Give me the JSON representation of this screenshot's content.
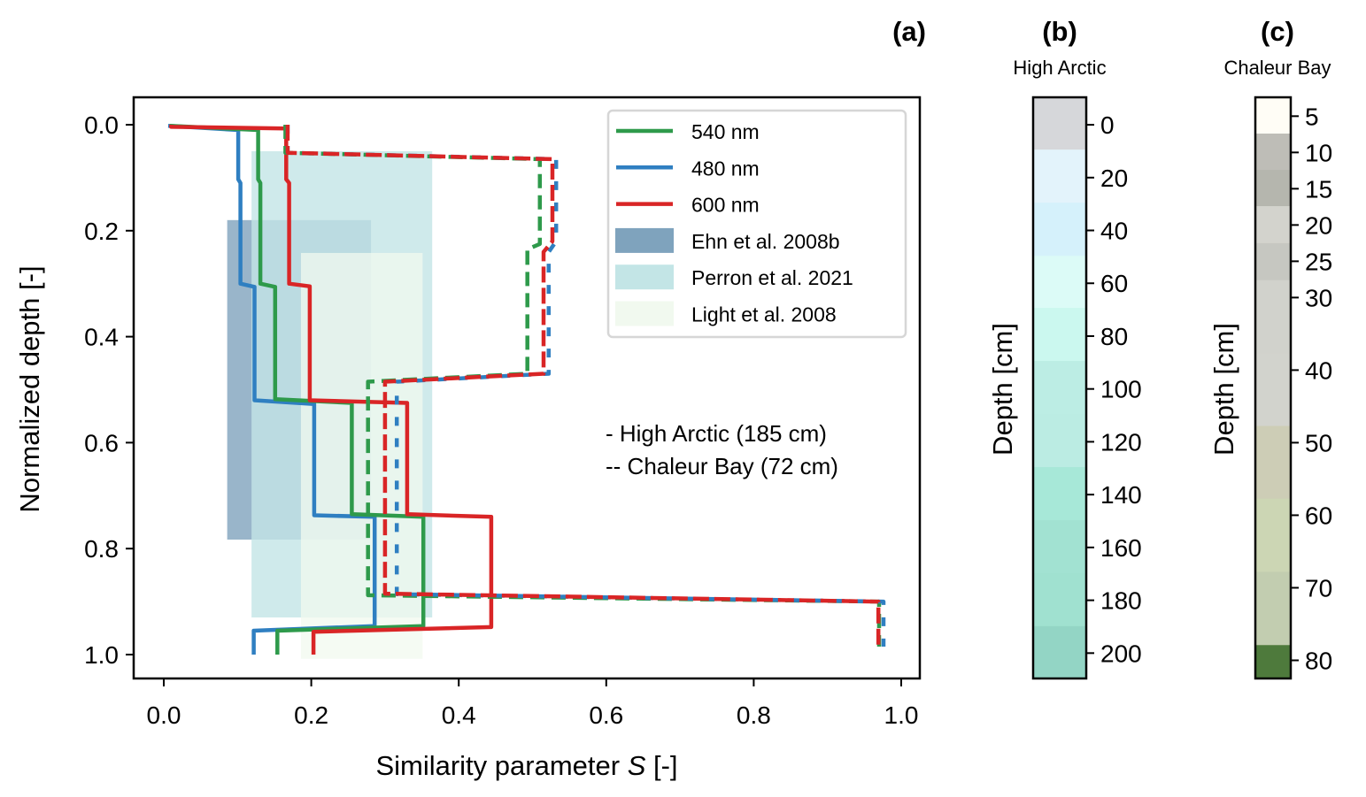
{
  "chart_data": {
    "type": "line",
    "panel_label": "(a)",
    "xlabel_prefix": "Similarity parameter ",
    "xlabel_var": "S",
    "xlabel_suffix": " [-]",
    "ylabel": "Normalized depth [-]",
    "xlim": [
      -0.04,
      1.026
    ],
    "ylim": [
      1.05,
      -0.05
    ],
    "y_inverted": true,
    "xticks": [
      0.0,
      0.2,
      0.4,
      0.6,
      0.8,
      1.0
    ],
    "xtick_labels": [
      "0.0",
      "0.2",
      "0.4",
      "0.6",
      "0.8",
      "1.0"
    ],
    "yticks": [
      0.0,
      0.2,
      0.4,
      0.6,
      0.8,
      1.0
    ],
    "ytick_labels": [
      "0.0",
      "0.2",
      "0.4",
      "0.6",
      "0.8",
      "1.0"
    ],
    "grid": false,
    "legend_placement": "top-right",
    "annotations": [
      "- High Arctic (185 cm)",
      "-- Chaleur Bay (72 cm)"
    ],
    "series": [
      {
        "name": "480 nm",
        "site": "High Arctic",
        "style": "solid",
        "color": "#2f7fc1",
        "points": [
          [
            0.006,
            0.002
          ],
          [
            0.101,
            0.01
          ],
          [
            0.101,
            0.103
          ],
          [
            0.104,
            0.11
          ],
          [
            0.104,
            0.3
          ],
          [
            0.123,
            0.306
          ],
          [
            0.123,
            0.52
          ],
          [
            0.204,
            0.527
          ],
          [
            0.204,
            0.737
          ],
          [
            0.286,
            0.74
          ],
          [
            0.286,
            0.946
          ],
          [
            0.122,
            0.955
          ],
          [
            0.122,
            1.0
          ]
        ]
      },
      {
        "name": "540 nm",
        "site": "High Arctic",
        "style": "solid",
        "color": "#2e9a4b",
        "points": [
          [
            0.008,
            0.002
          ],
          [
            0.128,
            0.01
          ],
          [
            0.128,
            0.103
          ],
          [
            0.131,
            0.11
          ],
          [
            0.131,
            0.3
          ],
          [
            0.151,
            0.306
          ],
          [
            0.151,
            0.518
          ],
          [
            0.255,
            0.525
          ],
          [
            0.255,
            0.735
          ],
          [
            0.352,
            0.74
          ],
          [
            0.352,
            0.946
          ],
          [
            0.154,
            0.955
          ],
          [
            0.154,
            1.0
          ]
        ]
      },
      {
        "name": "600 nm",
        "site": "High Arctic",
        "style": "solid",
        "color": "#d92526",
        "points": [
          [
            0.01,
            0.0
          ],
          [
            0.01,
            0.004
          ],
          [
            0.166,
            0.007
          ],
          [
            0.166,
            0.103
          ],
          [
            0.17,
            0.11
          ],
          [
            0.17,
            0.3
          ],
          [
            0.198,
            0.305
          ],
          [
            0.198,
            0.52
          ],
          [
            0.33,
            0.525
          ],
          [
            0.33,
            0.735
          ],
          [
            0.444,
            0.74
          ],
          [
            0.444,
            0.948
          ],
          [
            0.203,
            0.957
          ],
          [
            0.203,
            1.0
          ]
        ]
      },
      {
        "name": "540 nm",
        "site": "Chaleur Bay",
        "style": "dashed",
        "color": "#2e9a4b",
        "points": [
          [
            0.165,
            0.0
          ],
          [
            0.165,
            0.053
          ],
          [
            0.51,
            0.065
          ],
          [
            0.51,
            0.225
          ],
          [
            0.493,
            0.235
          ],
          [
            0.493,
            0.47
          ],
          [
            0.277,
            0.485
          ],
          [
            0.277,
            0.888
          ],
          [
            0.97,
            0.9
          ],
          [
            0.97,
            0.985
          ]
        ]
      },
      {
        "name": "480 nm",
        "site": "Chaleur Bay",
        "style": "dashed",
        "color": "#2f7fc1",
        "points": [
          [
            0.168,
            0.0
          ],
          [
            0.168,
            0.053
          ],
          [
            0.532,
            0.065
          ],
          [
            0.532,
            0.22
          ],
          [
            0.522,
            0.24
          ],
          [
            0.522,
            0.47
          ],
          [
            0.316,
            0.485
          ],
          [
            0.316,
            0.886
          ],
          [
            0.976,
            0.9
          ],
          [
            0.976,
            0.985
          ]
        ]
      },
      {
        "name": "600 nm",
        "site": "Chaleur Bay",
        "style": "dashed",
        "color": "#d92526",
        "points": [
          [
            0.168,
            0.0
          ],
          [
            0.168,
            0.053
          ],
          [
            0.527,
            0.065
          ],
          [
            0.527,
            0.22
          ],
          [
            0.515,
            0.24
          ],
          [
            0.515,
            0.47
          ],
          [
            0.3,
            0.485
          ],
          [
            0.3,
            0.885
          ],
          [
            0.969,
            0.9
          ],
          [
            0.969,
            0.985
          ]
        ]
      }
    ],
    "ranges": [
      {
        "name": "Ehn et al. 2008b",
        "color": "#7fa3bd",
        "x": [
          0.086,
          0.281
        ],
        "y": [
          0.18,
          0.783
        ]
      },
      {
        "name": "Perron et al. 2021",
        "color": "#c3e5e6",
        "x": [
          0.119,
          0.364
        ],
        "y": [
          0.05,
          0.93
        ]
      },
      {
        "name": "Light et al. 2008",
        "color": "#f1f9ef",
        "x": [
          0.186,
          0.351
        ],
        "y": [
          0.242,
          1.008
        ]
      }
    ],
    "legend": [
      "540 nm",
      "480 nm",
      "600 nm",
      "Ehn et al. 2008b",
      "Perron et al. 2021",
      "Light et al. 2008"
    ],
    "legend_colors": [
      "#2e9a4b",
      "#2f7fc1",
      "#d92526",
      "#7fa3bd",
      "#c3e5e6",
      "#f1f9ef"
    ]
  },
  "colorbars": [
    {
      "panel_label": "(b)",
      "title": "High Arctic",
      "ylabel": "Depth [cm]",
      "range": [
        -10.4,
        209.6
      ],
      "ticks": [
        0,
        20,
        40,
        60,
        80,
        100,
        120,
        140,
        160,
        180,
        200
      ],
      "tick_labels": [
        "0",
        "20",
        "40",
        "60",
        "80",
        "100",
        "120",
        "140",
        "160",
        "180",
        "200"
      ],
      "bands": [
        {
          "from": -10.4,
          "to": 9.4,
          "color": "#d6d7da"
        },
        {
          "from": 9.4,
          "to": 29.5,
          "color": "#e3f3fb"
        },
        {
          "from": 29.5,
          "to": 49.6,
          "color": "#d5f1fb"
        },
        {
          "from": 49.6,
          "to": 69.3,
          "color": "#dcfbf7"
        },
        {
          "from": 69.3,
          "to": 89.4,
          "color": "#cbf8ef"
        },
        {
          "from": 89.4,
          "to": 109.5,
          "color": "#bcede4"
        },
        {
          "from": 109.5,
          "to": 129.6,
          "color": "#bbece3"
        },
        {
          "from": 129.6,
          "to": 149.7,
          "color": "#a7e8d8"
        },
        {
          "from": 149.7,
          "to": 169.8,
          "color": "#a2e2d2"
        },
        {
          "from": 169.8,
          "to": 189.8,
          "color": "#a0e1d0"
        },
        {
          "from": 189.8,
          "to": 209.6,
          "color": "#93d5c5"
        }
      ]
    },
    {
      "panel_label": "(c)",
      "title": "Chaleur Bay",
      "ylabel": "Depth [cm]",
      "range": [
        2.4,
        82.5
      ],
      "ticks": [
        5,
        10,
        15,
        20,
        25,
        30,
        40,
        50,
        60,
        70,
        80
      ],
      "tick_labels": [
        "5",
        "10",
        "15",
        "20",
        "25",
        "30",
        "40",
        "50",
        "60",
        "70",
        "80"
      ],
      "bands": [
        {
          "from": 2.4,
          "to": 7.4,
          "color": "#fffdf6"
        },
        {
          "from": 7.4,
          "to": 12.4,
          "color": "#bebdb7"
        },
        {
          "from": 12.4,
          "to": 17.4,
          "color": "#b5b6ae"
        },
        {
          "from": 17.4,
          "to": 22.5,
          "color": "#d3d3cd"
        },
        {
          "from": 22.5,
          "to": 27.6,
          "color": "#c6c7c1"
        },
        {
          "from": 27.6,
          "to": 32.6,
          "color": "#d1d2cc"
        },
        {
          "from": 32.6,
          "to": 37.7,
          "color": "#d1d2cc"
        },
        {
          "from": 37.7,
          "to": 47.7,
          "color": "#d2d3cd"
        },
        {
          "from": 47.7,
          "to": 57.7,
          "color": "#cdcdb6"
        },
        {
          "from": 57.7,
          "to": 67.8,
          "color": "#ccd6b4"
        },
        {
          "from": 67.8,
          "to": 77.9,
          "color": "#c2cdb0"
        },
        {
          "from": 77.9,
          "to": 82.5,
          "color": "#4e7a3c"
        }
      ]
    }
  ]
}
